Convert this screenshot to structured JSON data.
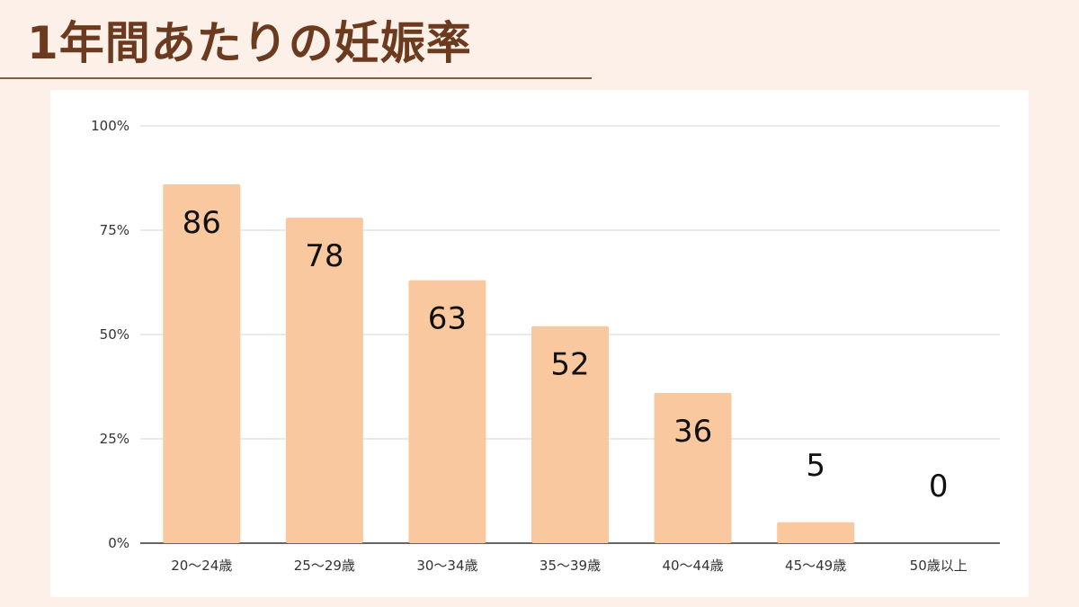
{
  "title": "1年間あたりの妊娠率",
  "chart_data": {
    "type": "bar",
    "title": "",
    "xlabel": "",
    "ylabel": "",
    "categories": [
      "20〜24歳",
      "25〜29歳",
      "30〜34歳",
      "35〜39歳",
      "40〜44歳",
      "45〜49歳",
      "50歳以上"
    ],
    "values": [
      86,
      78,
      63,
      52,
      36,
      5,
      0
    ],
    "ylim": [
      0,
      100
    ],
    "yticks": [
      "0%",
      "25%",
      "50%",
      "75%",
      "100%"
    ],
    "ytick_values": [
      0,
      25,
      50,
      75,
      100
    ],
    "grid": true,
    "legend": "none",
    "bar_color": "#f9c89e"
  }
}
